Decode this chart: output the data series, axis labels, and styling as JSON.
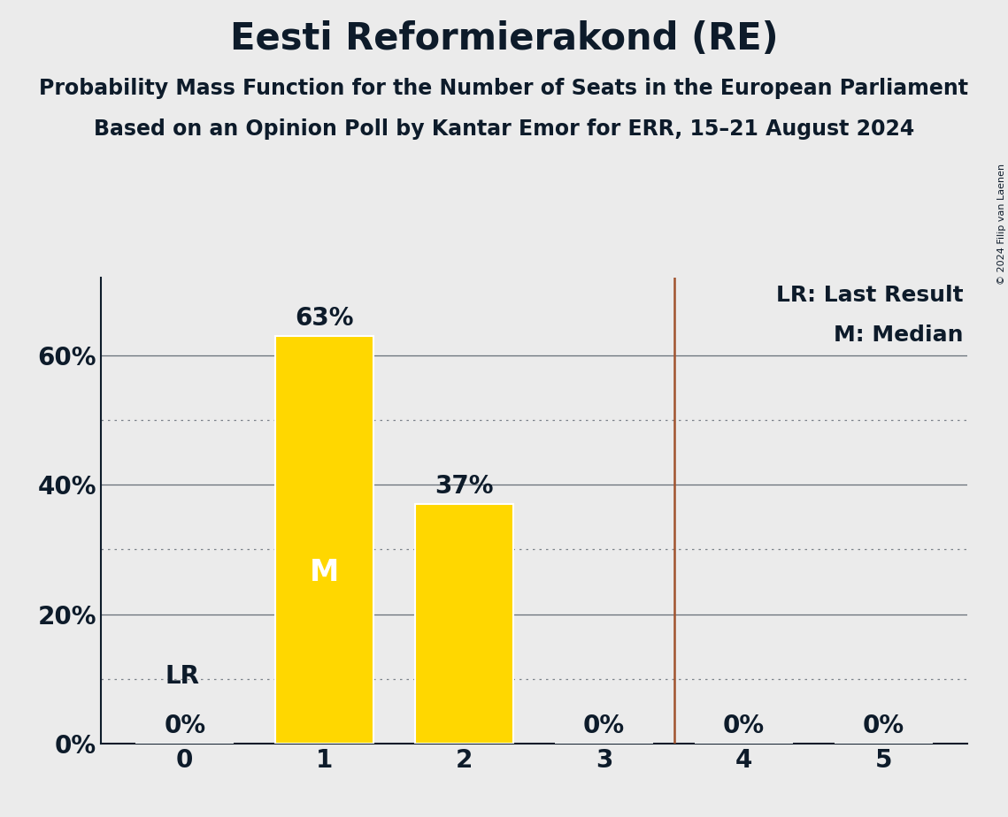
{
  "title": "Eesti Reformierakond (RE)",
  "subtitle1": "Probability Mass Function for the Number of Seats in the European Parliament",
  "subtitle2": "Based on an Opinion Poll by Kantar Emor for ERR, 15–21 August 2024",
  "copyright": "© 2024 Filip van Laenen",
  "seats": [
    0,
    1,
    2,
    3,
    4,
    5
  ],
  "probabilities": [
    0.0,
    0.63,
    0.37,
    0.0,
    0.0,
    0.0
  ],
  "bar_color": "#FFD700",
  "median": 1,
  "last_result": 3.5,
  "lr_line_color": "#A0522D",
  "median_label_color": "#FFFFFF",
  "median_label": "M",
  "background_color": "#EBEBEB",
  "axes_color": "#0D1B2A",
  "yticks": [
    0.0,
    0.2,
    0.4,
    0.6
  ],
  "ytick_labels": [
    "0%",
    "20%",
    "40%",
    "60%"
  ],
  "ylim": [
    0,
    0.72
  ],
  "legend_lr": "LR: Last Result",
  "legend_m": "M: Median",
  "lr_label": "LR",
  "title_fontsize": 30,
  "subtitle_fontsize": 17,
  "tick_fontsize": 20,
  "bar_label_fontsize": 20,
  "legend_fontsize": 18,
  "median_fontsize": 24,
  "lr_label_fontsize": 20,
  "solid_grid_levels": [
    0.2,
    0.4,
    0.6
  ],
  "dotted_grid_levels": [
    0.1,
    0.3,
    0.5
  ]
}
